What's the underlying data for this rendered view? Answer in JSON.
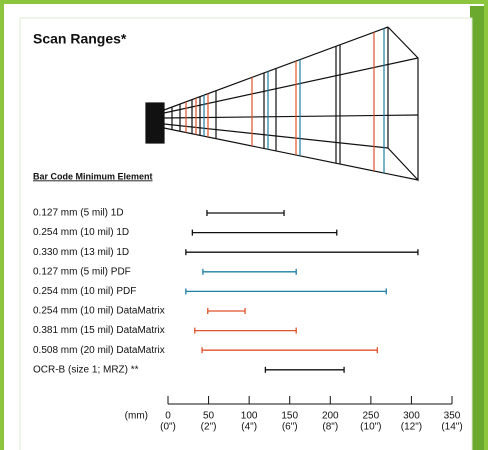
{
  "chart_data": {
    "type": "range",
    "title": "Scan Ranges*",
    "subtitle": "Bar Code Minimum Element",
    "xlabel": "(mm)",
    "categories": [
      "0.127 mm (5 mil) 1D",
      "0.254 mm (10 mil) 1D",
      "0.330 mm (13 mil) 1D",
      "0.127 mm (5 mil) PDF",
      "0.254 mm (10 mil) PDF",
      "0.254 mm (10 mil) DataMatrix",
      "0.381 mm (15 mil) DataMatrix",
      "0.508 mm (20 mil) DataMatrix",
      "OCR-B (size 1; MRZ) **"
    ],
    "ranges": [
      [
        48,
        143
      ],
      [
        30,
        208
      ],
      [
        22,
        308
      ],
      [
        43,
        158
      ],
      [
        22,
        269
      ],
      [
        49,
        95
      ],
      [
        33,
        158
      ],
      [
        42,
        258
      ],
      [
        120,
        217
      ]
    ],
    "colors": [
      "#111111",
      "#111111",
      "#111111",
      "#1f7fa6",
      "#1f7fa6",
      "#e0522a",
      "#e0522a",
      "#e0522a",
      "#111111"
    ],
    "xlim": [
      0,
      350
    ],
    "xticks": [
      0,
      50,
      100,
      150,
      200,
      250,
      300,
      350
    ],
    "xtick_sublabels": [
      "(0\")",
      "(2\")",
      "(4\")",
      "(6\")",
      "(8\")",
      "(10\")",
      "(12\")",
      "(14\")"
    ]
  }
}
